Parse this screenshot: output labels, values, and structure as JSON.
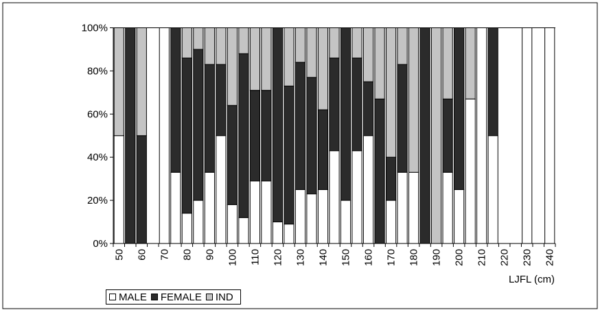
{
  "chart_data": {
    "type": "bar",
    "stacked": true,
    "percent": true,
    "xlabel": "LJFL (cm)",
    "ylabel": "",
    "ylim": [
      0,
      100
    ],
    "yticks": [
      "0%",
      "20%",
      "40%",
      "60%",
      "80%",
      "100%"
    ],
    "categories": [
      "50",
      "55",
      "60",
      "65",
      "70",
      "75",
      "80",
      "85",
      "90",
      "95",
      "100",
      "105",
      "110",
      "115",
      "120",
      "125",
      "130",
      "135",
      "140",
      "145",
      "150",
      "155",
      "160",
      "165",
      "170",
      "175",
      "180",
      "185",
      "190",
      "195",
      "200",
      "205",
      "210",
      "215",
      "220",
      "225",
      "230",
      "235",
      "240"
    ],
    "xtick_labels": [
      "50",
      "",
      "60",
      "",
      "70",
      "",
      "80",
      "",
      "90",
      "",
      "100",
      "",
      "110",
      "",
      "120",
      "",
      "130",
      "",
      "140",
      "",
      "150",
      "",
      "160",
      "",
      "170",
      "",
      "180",
      "",
      "190",
      "",
      "200",
      "",
      "210",
      "",
      "220",
      "",
      "230",
      "",
      "240"
    ],
    "series": [
      {
        "name": "MALE",
        "color": "#ffffff",
        "values": [
          50,
          0,
          0,
          0,
          100,
          33,
          14,
          20,
          33,
          50,
          18,
          12,
          29,
          29,
          10,
          9,
          25,
          23,
          25,
          43,
          20,
          43,
          50,
          0,
          20,
          33,
          33,
          0,
          0,
          33,
          25,
          67,
          100,
          50,
          0,
          0,
          100,
          0,
          100
        ]
      },
      {
        "name": "FEMALE",
        "color": "#2b2b2b",
        "values": [
          0,
          100,
          50,
          0,
          0,
          67,
          72,
          70,
          50,
          33,
          46,
          76,
          42,
          42,
          90,
          64,
          59,
          54,
          37,
          43,
          80,
          43,
          25,
          67,
          20,
          50,
          0,
          100,
          0,
          34,
          75,
          0,
          0,
          50,
          0,
          0,
          0,
          0,
          0
        ]
      },
      {
        "name": "IND",
        "color": "#c4c4c4",
        "values": [
          50,
          0,
          50,
          0,
          0,
          0,
          14,
          10,
          17,
          17,
          36,
          12,
          29,
          29,
          0,
          27,
          16,
          23,
          38,
          14,
          0,
          14,
          25,
          33,
          60,
          17,
          67,
          0,
          100,
          33,
          0,
          33,
          0,
          0,
          0,
          0,
          0,
          0,
          0
        ]
      }
    ],
    "grid": false,
    "legend": "bottom-left"
  }
}
